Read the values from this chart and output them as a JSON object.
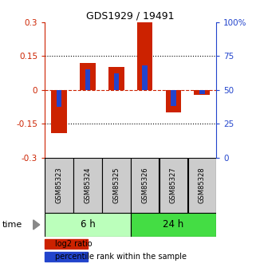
{
  "title": "GDS1929 / 19491",
  "samples": [
    "GSM85323",
    "GSM85324",
    "GSM85325",
    "GSM85326",
    "GSM85327",
    "GSM85328"
  ],
  "log2_ratio": [
    -0.19,
    0.12,
    0.1,
    0.3,
    -0.1,
    -0.02
  ],
  "percentile_rank": [
    37.5,
    65.0,
    62.0,
    68.0,
    38.0,
    47.0
  ],
  "groups": [
    {
      "label": "6 h",
      "indices": [
        0,
        1,
        2
      ],
      "color": "#bbffbb"
    },
    {
      "label": "24 h",
      "indices": [
        3,
        4,
        5
      ],
      "color": "#44dd44"
    }
  ],
  "ylim": [
    -0.3,
    0.3
  ],
  "yticks_left": [
    -0.3,
    -0.15,
    0,
    0.15,
    0.3
  ],
  "yticks_right_vals": [
    0,
    25,
    50,
    75,
    100
  ],
  "yticks_right_labels": [
    "0",
    "25",
    "50",
    "75",
    "100%"
  ],
  "bar_color_red": "#cc2200",
  "bar_color_blue": "#2244cc",
  "zero_line_color": "#cc2200",
  "bg_color": "#ffffff",
  "time_label": "time",
  "legend_red": "log2 ratio",
  "legend_blue": "percentile rank within the sample",
  "bar_width": 0.55,
  "blue_bar_width": 0.18
}
